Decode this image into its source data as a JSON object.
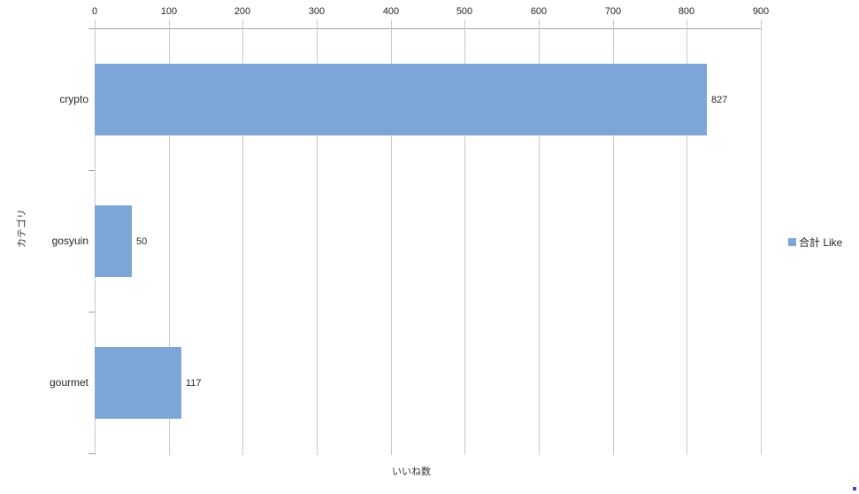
{
  "chart_data": {
    "type": "bar",
    "orientation": "horizontal",
    "title": "",
    "categories": [
      "crypto",
      "gosyuin",
      "gourmet"
    ],
    "values": [
      827,
      50,
      117
    ],
    "data_labels": [
      "827",
      "50",
      "117"
    ],
    "series": [
      {
        "name": "合計 Like",
        "color": "#7CA5D8",
        "values": [
          827,
          50,
          117
        ]
      }
    ],
    "xlabel": "いいね数",
    "ylabel": "カテゴリ",
    "xlim": [
      0,
      900
    ],
    "x_ticks": [
      0,
      100,
      200,
      300,
      400,
      500,
      600,
      700,
      800,
      900
    ],
    "x_tick_position": "top",
    "grid": "vertical",
    "legend_position": "right"
  },
  "axes": {
    "x_title": "いいね数",
    "y_title": "カテゴリ"
  },
  "legend": {
    "label": "合計 Like",
    "marker_color": "#7CA5D8"
  },
  "colors": {
    "bar_fill": "#7CA5D8",
    "gridline": "#c9c9c9",
    "axis_line": "#9e9e9e",
    "text": "#262626"
  }
}
